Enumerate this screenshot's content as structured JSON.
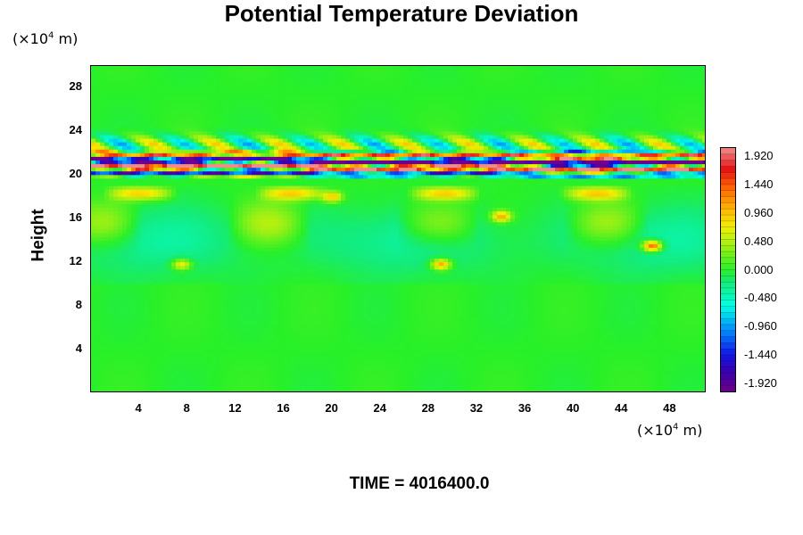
{
  "chart_data": {
    "type": "heatmap",
    "title": "Potential Temperature Deviation",
    "ylabel": "Height",
    "y_unit": {
      "prefix": "(×10",
      "exp": "4",
      "suffix": " m)"
    },
    "x_unit": {
      "prefix": "(×10",
      "exp": "4",
      "suffix": " m)"
    },
    "xlim": [
      0,
      51
    ],
    "ylim": [
      0,
      30
    ],
    "x_ticks": [
      "4",
      "8",
      "12",
      "16",
      "20",
      "24",
      "28",
      "32",
      "36",
      "40",
      "44",
      "48"
    ],
    "x_tick_values": [
      4,
      8,
      12,
      16,
      20,
      24,
      28,
      32,
      36,
      40,
      44,
      48
    ],
    "y_ticks": [
      "4",
      "8",
      "12",
      "16",
      "20",
      "24",
      "28"
    ],
    "y_tick_values": [
      4,
      8,
      12,
      16,
      20,
      24,
      28
    ],
    "colorbar": {
      "labels": [
        "1.920",
        "1.440",
        "0.960",
        "0.480",
        "0.000",
        "-0.480",
        "-0.960",
        "-1.440",
        "-1.920"
      ],
      "values": [
        1.92,
        1.44,
        0.96,
        0.48,
        0.0,
        -0.48,
        -0.96,
        -1.44,
        -1.92
      ],
      "range": [
        -2.0,
        2.0
      ]
    },
    "field_regions": {
      "background": "near 0 (green) over most of domain",
      "strong_band_y": [
        19.5,
        22.5
      ],
      "moderate_band_y": [
        10,
        19
      ]
    },
    "colors": {
      "high": "#f08080",
      "red": "#ee1111",
      "orange": "#ffaa00",
      "yellow": "#eeee00",
      "green": "#22ee22",
      "cyan": "#00ffee",
      "blue": "#2222ee",
      "low": "#880099"
    }
  },
  "footer": {
    "time_label": "TIME = 4016400.0"
  }
}
